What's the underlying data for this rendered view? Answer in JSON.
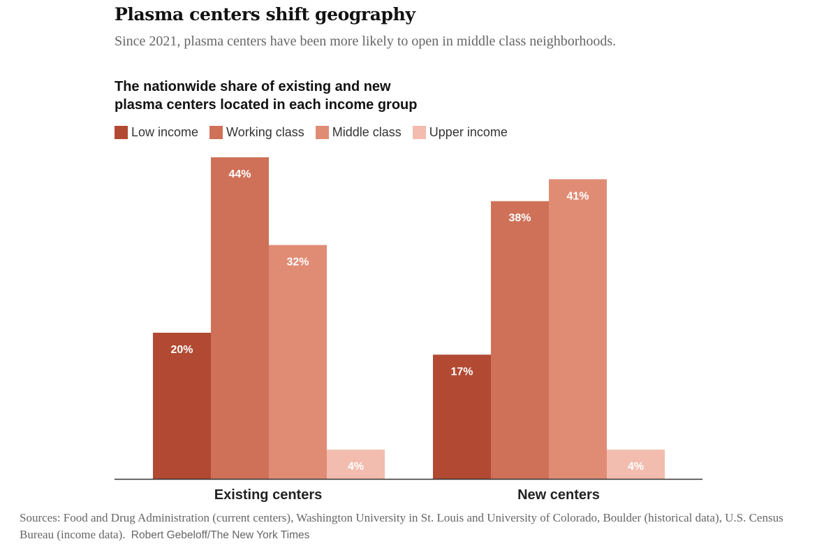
{
  "headline": "Plasma centers shift geography",
  "dek": "Since 2021, plasma centers have been more likely to open in middle class neighborhoods.",
  "chart_title_line1": "The nationwide share of existing and new",
  "chart_title_line2": "plasma centers located in each income group",
  "sources": "Sources: Food and Drug Administration (current centers), Washington University in St. Louis and University of Colorado, Boulder (historical data), U.S. Census Bureau (income data).",
  "credit": "Robert Gebeloff/The New York Times",
  "colors": {
    "low_income": "#b24a33",
    "working_class": "#cf7158",
    "middle_class": "#e08c75",
    "upper_income": "#f2bcae",
    "axis": "#333333"
  },
  "chart_data": {
    "type": "bar",
    "title": "The nationwide share of existing and new plasma centers located in each income group",
    "categories": [
      "Existing centers",
      "New centers"
    ],
    "series": [
      {
        "name": "Low income",
        "values": [
          20,
          17
        ],
        "labels": [
          "20%",
          "17%"
        ]
      },
      {
        "name": "Working class",
        "values": [
          44,
          38
        ],
        "labels": [
          "44%",
          "38%"
        ]
      },
      {
        "name": "Middle class",
        "values": [
          32,
          41
        ],
        "labels": [
          "32%",
          "41%"
        ]
      },
      {
        "name": "Upper income",
        "values": [
          4,
          4
        ],
        "labels": [
          "4%",
          "4%"
        ]
      }
    ],
    "xlabel": "",
    "ylabel": "",
    "ylim": [
      0,
      44
    ],
    "grid": false,
    "legend": "top-left"
  }
}
